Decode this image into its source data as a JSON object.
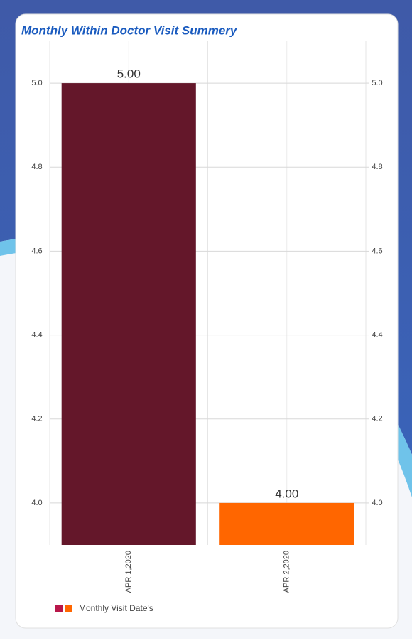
{
  "chart_data": {
    "type": "bar",
    "title": "Monthly Within Doctor Visit Summery",
    "categories": [
      "APR 1,2020",
      "APR 2,2020"
    ],
    "series": [
      {
        "name": "Monthly Visit Date's",
        "colors": [
          "#64172a",
          "#ff6600"
        ],
        "legend_colors": [
          "#b8174a",
          "#ff6600"
        ],
        "values": [
          5,
          4
        ],
        "value_labels": [
          "5.00",
          "4.00"
        ]
      }
    ],
    "ylim": [
      3.9,
      5.1
    ],
    "yticks": [
      {
        "value": 4,
        "label": "4.0"
      },
      4.2,
      4.4,
      4.6,
      4.8,
      {
        "value": 5,
        "label": "5.0"
      }
    ],
    "y2lim": [
      3.9,
      5.1
    ],
    "y2ticks": [
      {
        "value": 4,
        "label": "4.0"
      },
      4.2,
      4.4,
      4.6,
      4.8,
      {
        "value": 5,
        "label": "5.0"
      }
    ],
    "grid": true,
    "legend": "bottom-left"
  }
}
